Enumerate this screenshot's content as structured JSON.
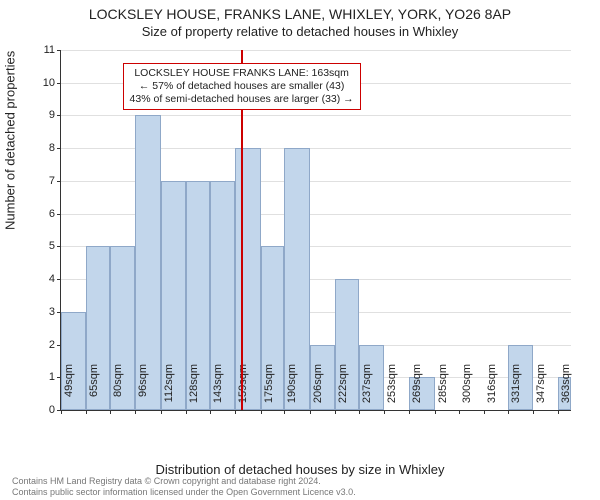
{
  "title_line1": "LOCKSLEY HOUSE, FRANKS LANE, WHIXLEY, YORK, YO26 8AP",
  "title_line2": "Size of property relative to detached houses in Whixley",
  "ylabel": "Number of detached properties",
  "xlabel": "Distribution of detached houses by size in Whixley",
  "chart": {
    "type": "histogram",
    "ylim": [
      0,
      11
    ],
    "ytick_step": 1,
    "xlim": [
      49,
      371
    ],
    "bar_color": "#c2d6eb",
    "bar_border_color": "#8fa8c8",
    "grid_color": "#e0e0e0",
    "axis_color": "#333333",
    "background_color": "#ffffff",
    "xticks": [
      {
        "pos": 49,
        "label": "49sqm"
      },
      {
        "pos": 65,
        "label": "65sqm"
      },
      {
        "pos": 80,
        "label": "80sqm"
      },
      {
        "pos": 96,
        "label": "96sqm"
      },
      {
        "pos": 112,
        "label": "112sqm"
      },
      {
        "pos": 128,
        "label": "128sqm"
      },
      {
        "pos": 143,
        "label": "143sqm"
      },
      {
        "pos": 159,
        "label": "159sqm"
      },
      {
        "pos": 175,
        "label": "175sqm"
      },
      {
        "pos": 190,
        "label": "190sqm"
      },
      {
        "pos": 206,
        "label": "206sqm"
      },
      {
        "pos": 222,
        "label": "222sqm"
      },
      {
        "pos": 237,
        "label": "237sqm"
      },
      {
        "pos": 253,
        "label": "253sqm"
      },
      {
        "pos": 269,
        "label": "269sqm"
      },
      {
        "pos": 285,
        "label": "285sqm"
      },
      {
        "pos": 300,
        "label": "300sqm"
      },
      {
        "pos": 316,
        "label": "316sqm"
      },
      {
        "pos": 331,
        "label": "331sqm"
      },
      {
        "pos": 347,
        "label": "347sqm"
      },
      {
        "pos": 363,
        "label": "363sqm"
      }
    ],
    "bars": [
      {
        "from": 49,
        "to": 65,
        "value": 3
      },
      {
        "from": 65,
        "to": 80,
        "value": 5
      },
      {
        "from": 80,
        "to": 96,
        "value": 5
      },
      {
        "from": 96,
        "to": 112,
        "value": 9
      },
      {
        "from": 112,
        "to": 128,
        "value": 7
      },
      {
        "from": 128,
        "to": 143,
        "value": 7
      },
      {
        "from": 143,
        "to": 159,
        "value": 7
      },
      {
        "from": 159,
        "to": 175,
        "value": 8
      },
      {
        "from": 175,
        "to": 190,
        "value": 5
      },
      {
        "from": 190,
        "to": 206,
        "value": 8
      },
      {
        "from": 206,
        "to": 222,
        "value": 2
      },
      {
        "from": 222,
        "to": 237,
        "value": 4
      },
      {
        "from": 237,
        "to": 253,
        "value": 2
      },
      {
        "from": 253,
        "to": 269,
        "value": 0
      },
      {
        "from": 269,
        "to": 285,
        "value": 1
      },
      {
        "from": 285,
        "to": 300,
        "value": 0
      },
      {
        "from": 300,
        "to": 316,
        "value": 0
      },
      {
        "from": 316,
        "to": 331,
        "value": 0
      },
      {
        "from": 331,
        "to": 347,
        "value": 2
      },
      {
        "from": 347,
        "to": 363,
        "value": 0
      },
      {
        "from": 363,
        "to": 371,
        "value": 1
      }
    ],
    "reference_line": {
      "x": 163,
      "color": "#cc0000",
      "width": 2
    },
    "annotation": {
      "line1": "LOCKSLEY HOUSE FRANKS LANE: 163sqm",
      "line2": "← 57% of detached houses are smaller (43)",
      "line3": "43% of semi-detached houses are larger (33) →",
      "border_color": "#cc0000",
      "bg_color": "#ffffff",
      "x": 163,
      "y_top": 10.6
    }
  },
  "footer_line1": "Contains HM Land Registry data © Crown copyright and database right 2024.",
  "footer_line2": "Contains public sector information licensed under the Open Government Licence v3.0."
}
